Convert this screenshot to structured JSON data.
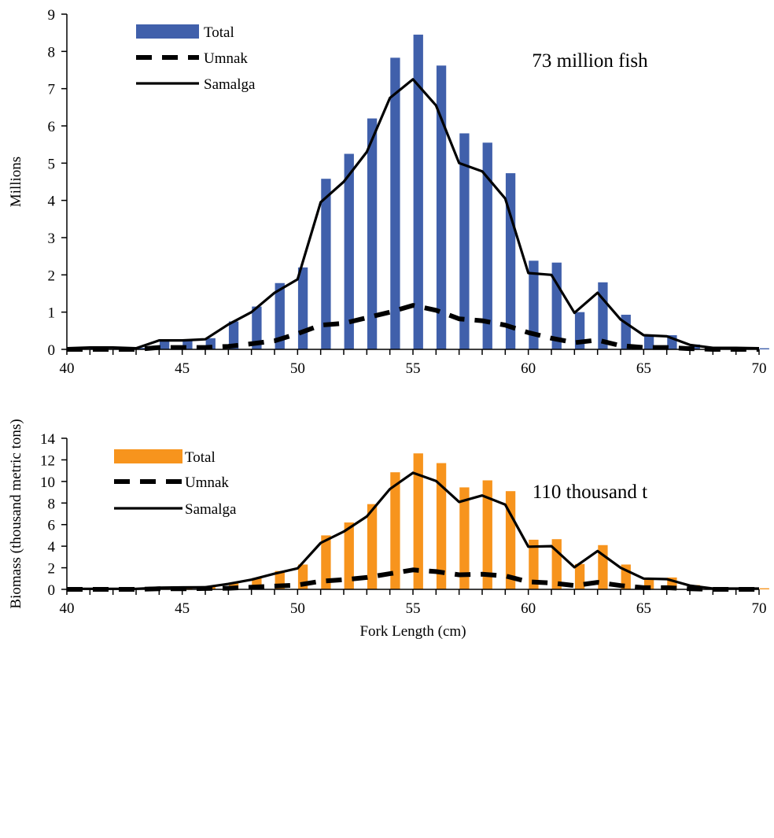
{
  "chart_data": [
    {
      "type": "bar",
      "title": "",
      "annotation": "73 million fish",
      "xlabel": "",
      "ylabel": "Millions",
      "xlim": [
        40,
        70
      ],
      "ylim": [
        0,
        9
      ],
      "x_ticks": [
        "40",
        "45",
        "50",
        "55",
        "60",
        "65",
        "70"
      ],
      "y_ticks": [
        "0",
        "1",
        "2",
        "3",
        "4",
        "5",
        "6",
        "7",
        "8",
        "9"
      ],
      "grid": false,
      "legend_position": "top-left",
      "colors": {
        "total": "#4060ab",
        "lines": "#000000"
      },
      "x": [
        40,
        41,
        42,
        43,
        44,
        45,
        46,
        47,
        48,
        49,
        50,
        51,
        52,
        53,
        54,
        55,
        56,
        57,
        58,
        59,
        60,
        61,
        62,
        63,
        64,
        65,
        66,
        67,
        68,
        69,
        70
      ],
      "series": [
        {
          "name": "Total",
          "kind": "bar",
          "values": [
            0.03,
            0.08,
            0.05,
            0.04,
            0.26,
            0.26,
            0.3,
            0.75,
            1.15,
            1.78,
            2.2,
            4.58,
            5.25,
            6.2,
            7.83,
            8.45,
            7.62,
            5.8,
            5.55,
            4.73,
            2.38,
            2.33,
            1.0,
            1.8,
            0.93,
            0.4,
            0.38,
            0.13,
            0.05,
            0.05,
            0.03
          ]
        },
        {
          "name": "Umnak",
          "kind": "dashed-line",
          "values": [
            0.0,
            0.0,
            0.0,
            0.0,
            0.05,
            0.05,
            0.05,
            0.08,
            0.15,
            0.23,
            0.42,
            0.65,
            0.7,
            0.85,
            1.0,
            1.18,
            1.05,
            0.82,
            0.77,
            0.65,
            0.45,
            0.3,
            0.18,
            0.25,
            0.1,
            0.05,
            0.05,
            0.02,
            0.0,
            0.0,
            0.0
          ]
        },
        {
          "name": "Samalga",
          "kind": "solid-line",
          "values": [
            0.03,
            0.05,
            0.05,
            0.03,
            0.24,
            0.24,
            0.27,
            0.67,
            1.0,
            1.52,
            1.88,
            3.95,
            4.5,
            5.3,
            6.75,
            7.25,
            6.55,
            5.0,
            4.78,
            4.05,
            2.05,
            2.0,
            0.98,
            1.52,
            0.8,
            0.38,
            0.35,
            0.12,
            0.04,
            0.04,
            0.03
          ]
        }
      ]
    },
    {
      "type": "bar",
      "title": "",
      "annotation": "110 thousand t",
      "xlabel": "Fork Length (cm)",
      "ylabel": "Biomass (thousand metric tons)",
      "xlim": [
        40,
        70
      ],
      "ylim": [
        0,
        14
      ],
      "x_ticks": [
        "40",
        "45",
        "50",
        "55",
        "60",
        "65",
        "70"
      ],
      "y_ticks": [
        "0",
        "2",
        "4",
        "6",
        "8",
        "10",
        "12",
        "14"
      ],
      "grid": false,
      "legend_position": "top-left",
      "colors": {
        "total": "#f7941d",
        "lines": "#000000"
      },
      "x": [
        40,
        41,
        42,
        43,
        44,
        45,
        46,
        47,
        48,
        49,
        50,
        51,
        52,
        53,
        54,
        55,
        56,
        57,
        58,
        59,
        60,
        61,
        62,
        63,
        64,
        65,
        66,
        67,
        68,
        69,
        70
      ],
      "series": [
        {
          "name": "Total",
          "kind": "bar",
          "values": [
            0.05,
            0.08,
            0.06,
            0.06,
            0.2,
            0.2,
            0.25,
            0.55,
            1.05,
            1.7,
            2.3,
            5.0,
            6.2,
            7.9,
            10.85,
            12.6,
            11.7,
            9.45,
            10.1,
            9.1,
            4.6,
            4.65,
            2.35,
            4.1,
            2.3,
            1.05,
            1.1,
            0.4,
            0.08,
            0.08,
            0.1
          ]
        },
        {
          "name": "Umnak",
          "kind": "dashed-line",
          "values": [
            0.0,
            0.0,
            0.0,
            0.0,
            0.05,
            0.05,
            0.08,
            0.1,
            0.2,
            0.3,
            0.4,
            0.75,
            0.9,
            1.1,
            1.45,
            1.8,
            1.65,
            1.35,
            1.4,
            1.25,
            0.7,
            0.6,
            0.35,
            0.65,
            0.35,
            0.15,
            0.15,
            0.05,
            0.0,
            0.0,
            0.0
          ]
        },
        {
          "name": "Samalga",
          "kind": "solid-line",
          "values": [
            0.05,
            0.05,
            0.05,
            0.05,
            0.15,
            0.18,
            0.2,
            0.5,
            0.9,
            1.45,
            1.95,
            4.3,
            5.35,
            6.75,
            9.3,
            10.8,
            10.05,
            8.1,
            8.7,
            7.85,
            3.95,
            4.0,
            2.05,
            3.55,
            2.0,
            1.0,
            0.95,
            0.35,
            0.07,
            0.07,
            0.07
          ]
        }
      ]
    }
  ]
}
